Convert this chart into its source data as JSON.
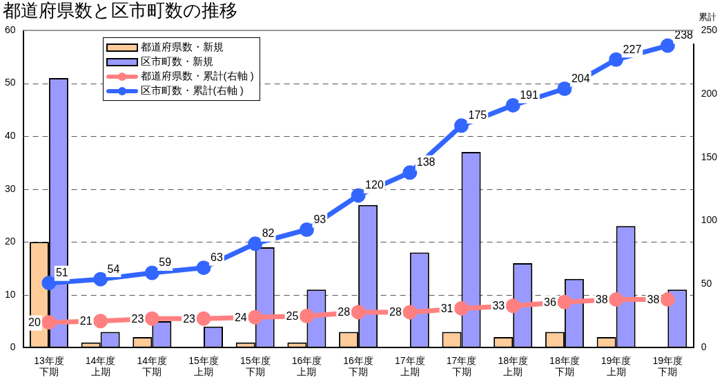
{
  "chart_data": {
    "type": "bar",
    "title": "都道府県数と区市町数の推移",
    "y2label": "累計",
    "categories": [
      "13年度下期",
      "14年度上期",
      "14年度下期",
      "15年度上期",
      "15年度下期",
      "16年度上期",
      "16年度下期",
      "17年度上期",
      "17年度下期",
      "18年度上期",
      "18年度下期",
      "19年度上期",
      "19年度下期"
    ],
    "series": [
      {
        "name": "都道府県数・新規",
        "color": "#ffcc99",
        "values": [
          20,
          1,
          2,
          0,
          1,
          1,
          3,
          0,
          3,
          2,
          3,
          2,
          0
        ]
      },
      {
        "name": "区市町数・新規",
        "color": "#9999ff",
        "values": [
          51,
          3,
          5,
          4,
          19,
          11,
          27,
          18,
          37,
          16,
          13,
          23,
          11
        ]
      },
      {
        "name": "都道府県数・累計(右軸 )",
        "type": "line",
        "axis": "y2",
        "color": "#ff8080",
        "values": [
          20,
          21,
          23,
          23,
          24,
          25,
          28,
          28,
          31,
          33,
          36,
          38,
          38
        ],
        "value_labels": [
          "20",
          "21",
          "23",
          "23",
          "24",
          "25",
          "28",
          "28",
          "31",
          "33",
          "36",
          "38",
          "38"
        ]
      },
      {
        "name": "区市町数・累計(右軸 )",
        "type": "line",
        "axis": "y2",
        "color": "#3366ff",
        "values": [
          51,
          54,
          59,
          63,
          82,
          93,
          120,
          138,
          175,
          191,
          204,
          227,
          238
        ],
        "value_labels": [
          "51",
          "54",
          "59",
          "63",
          "82",
          "93",
          "120",
          "138",
          "175",
          "191",
          "204",
          "227",
          "238"
        ]
      }
    ],
    "ylim": [
      0,
      60
    ],
    "yticks": [
      0,
      10,
      20,
      30,
      40,
      50,
      60
    ],
    "y2lim": [
      0,
      250
    ],
    "y2ticks": [
      0,
      50,
      100,
      150,
      200,
      250
    ],
    "grid": "y",
    "line_style": "solid",
    "marker": "circle",
    "legend": "top left"
  }
}
